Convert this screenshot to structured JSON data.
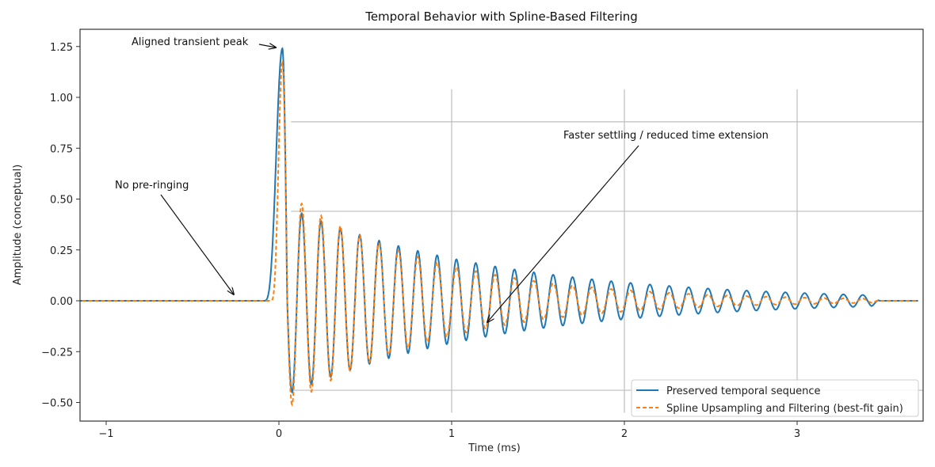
{
  "chart_data": {
    "type": "line",
    "title": "Temporal Behavior with Spline-Based Filtering",
    "xlabel": "Time (ms)",
    "ylabel": "Amplitude (conceptual)",
    "xlim": [
      -1.25,
      3.7
    ],
    "ylim": [
      -0.58,
      1.33
    ],
    "x_ticks": [
      -1,
      0,
      1,
      2,
      3
    ],
    "x_tick_labels": [
      "−1",
      "0",
      "1",
      "2",
      "3"
    ],
    "y_ticks": [
      1.25,
      1.0,
      0.75,
      0.5,
      0.25,
      0.0,
      -0.25,
      -0.5
    ],
    "y_tick_labels": [
      "1.25",
      "1.00",
      "0.75",
      "0.50",
      "0.25",
      "0.00",
      "−0.25",
      "−0.50"
    ],
    "grid": {
      "vertical_at_x": [
        1,
        2,
        3
      ],
      "vertical_y_range": [
        -0.55,
        1.04
      ],
      "horizontal_at_y": [
        0.88,
        0.44,
        -0.44
      ],
      "horizontal_x_range": [
        0.07,
        3.7
      ]
    },
    "series": [
      {
        "name": "Preserved temporal sequence",
        "color": "#1f77b4",
        "style": "solid",
        "model": {
          "onset_ms": -0.09,
          "peak_time_ms": 0.02,
          "peak_value": 1.24,
          "first_trough_value": -0.45,
          "oscillation_period_ms": 0.112,
          "decay_time_constant_ms": 1.2,
          "end_ms": 3.48,
          "baseline": 0.0
        },
        "key_points": [
          {
            "x": 0.02,
            "y": 1.24
          },
          {
            "x": 0.07,
            "y": -0.45
          },
          {
            "x": 0.13,
            "y": 0.44
          },
          {
            "x": 0.18,
            "y": -0.4
          },
          {
            "x": 0.245,
            "y": 0.38
          },
          {
            "x": 1.0,
            "y": 0.17
          },
          {
            "x": 2.0,
            "y": 0.06
          },
          {
            "x": 3.0,
            "y": 0.025
          },
          {
            "x": 3.45,
            "y": 0.015
          }
        ]
      },
      {
        "name": "Spline Upsampling and Filtering (best-fit gain)",
        "color": "#ff7f0e",
        "style": "dashed",
        "model": {
          "onset_ms": -0.05,
          "peak_time_ms": 0.02,
          "peak_value": 1.17,
          "first_trough_value": -0.51,
          "oscillation_period_ms": 0.112,
          "decay_time_constant_ms": 0.85,
          "end_ms": 3.48,
          "baseline": 0.0
        },
        "key_points": [
          {
            "x": 0.02,
            "y": 1.17
          },
          {
            "x": 0.075,
            "y": -0.51
          },
          {
            "x": 0.13,
            "y": 0.48
          },
          {
            "x": 0.19,
            "y": -0.45
          },
          {
            "x": 0.245,
            "y": 0.41
          },
          {
            "x": 1.0,
            "y": 0.12
          },
          {
            "x": 2.0,
            "y": 0.03
          },
          {
            "x": 3.0,
            "y": 0.01
          }
        ]
      }
    ],
    "annotations": [
      {
        "text": "Aligned transient peak",
        "arrow_to": {
          "x": 0.0,
          "y": 1.24
        }
      },
      {
        "text": "No pre-ringing",
        "arrow_to": {
          "x": -0.25,
          "y": 0.03
        }
      },
      {
        "text": "Faster settling / reduced time extension",
        "arrow_to": {
          "x": 1.2,
          "y": -0.1
        }
      }
    ],
    "legend": {
      "placement": "lower-right",
      "entries": [
        {
          "label": "Preserved temporal sequence",
          "color": "#1f77b4",
          "style": "solid"
        },
        {
          "label": "Spline Upsampling and Filtering (best-fit gain)",
          "color": "#ff7f0e",
          "style": "dashed"
        }
      ]
    }
  }
}
